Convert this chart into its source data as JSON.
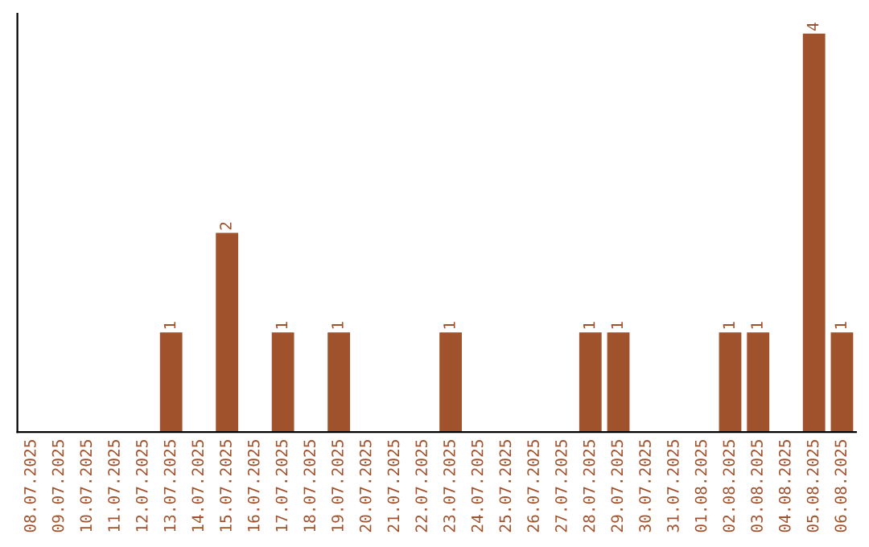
{
  "chart_data": {
    "type": "bar",
    "categories": [
      "08.07.2025",
      "09.07.2025",
      "10.07.2025",
      "11.07.2025",
      "12.07.2025",
      "13.07.2025",
      "14.07.2025",
      "15.07.2025",
      "16.07.2025",
      "17.07.2025",
      "18.07.2025",
      "19.07.2025",
      "20.07.2025",
      "21.07.2025",
      "22.07.2025",
      "23.07.2025",
      "24.07.2025",
      "25.07.2025",
      "26.07.2025",
      "27.07.2025",
      "28.07.2025",
      "29.07.2025",
      "30.07.2025",
      "31.07.2025",
      "01.08.2025",
      "02.08.2025",
      "03.08.2025",
      "04.08.2025",
      "05.08.2025",
      "06.08.2025"
    ],
    "values": [
      0,
      0,
      0,
      0,
      0,
      1,
      0,
      2,
      0,
      1,
      0,
      1,
      0,
      0,
      0,
      1,
      0,
      0,
      0,
      0,
      1,
      1,
      0,
      0,
      0,
      1,
      1,
      0,
      4,
      1
    ],
    "value_labels": [
      null,
      null,
      null,
      null,
      null,
      "1",
      null,
      "2",
      null,
      "1",
      null,
      "1",
      null,
      null,
      null,
      "1",
      null,
      null,
      null,
      null,
      "1",
      "1",
      null,
      null,
      null,
      "1",
      "1",
      null,
      "4",
      "1"
    ],
    "color": "#a0522d",
    "tick_labels": "x",
    "grid": false,
    "legend": false
  }
}
